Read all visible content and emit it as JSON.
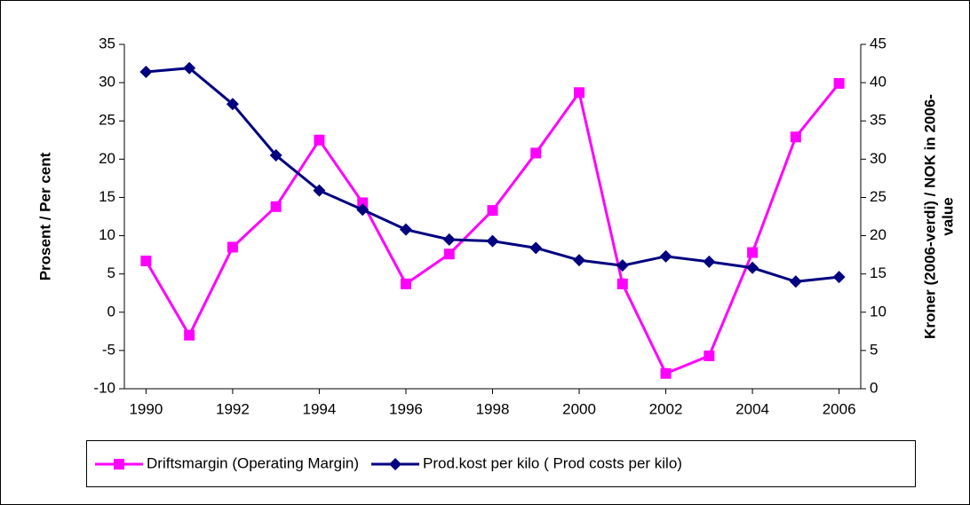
{
  "chart_data": {
    "type": "line",
    "ylabel": "Prosent / Per cent",
    "y2label": [
      "Kroner (2006-verdi) / NOK in 2006-",
      "value"
    ],
    "x": [
      1990,
      1991,
      1992,
      1993,
      1994,
      1995,
      1996,
      1997,
      1998,
      1999,
      2000,
      2001,
      2002,
      2003,
      2004,
      2005,
      2006
    ],
    "xlim": [
      1989.5,
      2006.5
    ],
    "xticks": [
      1990,
      1992,
      1994,
      1996,
      1998,
      2000,
      2002,
      2004,
      2006
    ],
    "ylim": [
      -10,
      35
    ],
    "yticks": [
      -10,
      -5,
      0,
      5,
      10,
      15,
      20,
      25,
      30,
      35
    ],
    "y2lim": [
      0,
      45
    ],
    "y2ticks": [
      0,
      5,
      10,
      15,
      20,
      25,
      30,
      35,
      40,
      45
    ],
    "grid": false,
    "legend": "bottom",
    "series": [
      {
        "name": "Driftsmargin (Operating Margin)",
        "color": "#ff00ff",
        "marker": "square",
        "values": [
          6.7,
          -3,
          8.5,
          13.8,
          22.5,
          14.3,
          3.7,
          7.6,
          13.3,
          20.8,
          28.7,
          3.7,
          -8,
          -5.7,
          7.8,
          22.9,
          29.9
        ]
      },
      {
        "name": "Prod.kost per kilo ( Prod costs per kilo)",
        "color": "#000080",
        "marker": "diamond",
        "axis": "y2",
        "values": [
          41.4,
          41.9,
          37.2,
          30.5,
          25.9,
          23.4,
          20.8,
          19.5,
          19.3,
          18.4,
          16.8,
          16.1,
          17.3,
          16.6,
          15.8,
          14.0,
          14.6
        ]
      }
    ]
  }
}
